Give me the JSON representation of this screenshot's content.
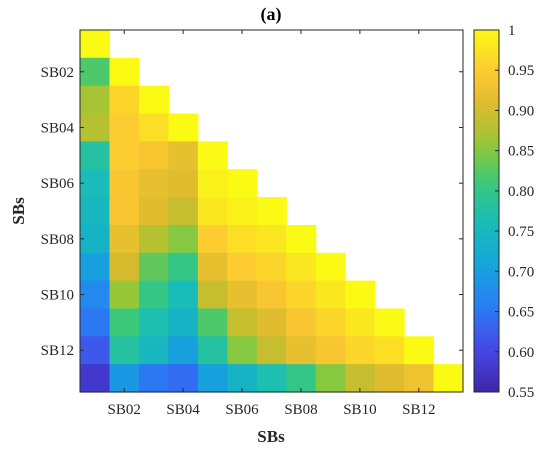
{
  "chart_data": {
    "type": "heatmap",
    "title": "(a)",
    "xlabel": "SBs",
    "ylabel": "SBs",
    "categories": [
      "SB01",
      "SB02",
      "SB03",
      "SB04",
      "SB05",
      "SB06",
      "SB07",
      "SB08",
      "SB09",
      "SB10",
      "SB11",
      "SB12",
      "SB13"
    ],
    "x_tick_labels": [
      "SB02",
      "SB04",
      "SB06",
      "SB08",
      "SB10",
      "SB12"
    ],
    "y_tick_labels": [
      "SB02",
      "SB04",
      "SB06",
      "SB08",
      "SB10",
      "SB12"
    ],
    "colorbar": {
      "range": [
        0.55,
        1
      ],
      "tick_values": [
        0.55,
        0.6,
        0.65,
        0.7,
        0.75,
        0.8,
        0.85,
        0.9,
        0.95,
        1
      ],
      "tick_labels": [
        "0.55",
        "0.60",
        "0.65",
        "0.70",
        "0.75",
        "0.80",
        "0.85",
        "0.90",
        "0.95",
        "1"
      ],
      "colormap": "parula"
    },
    "matrix": [
      [
        1.0
      ],
      [
        0.82,
        1.0
      ],
      [
        0.87,
        0.96,
        1.0
      ],
      [
        0.88,
        0.95,
        0.97,
        1.0
      ],
      [
        0.78,
        0.95,
        0.94,
        0.92,
        1.0
      ],
      [
        0.76,
        0.94,
        0.92,
        0.91,
        0.99,
        1.0
      ],
      [
        0.75,
        0.94,
        0.91,
        0.89,
        0.98,
        0.99,
        1.0
      ],
      [
        0.74,
        0.92,
        0.88,
        0.85,
        0.95,
        0.97,
        0.98,
        1.0
      ],
      [
        0.7,
        0.9,
        0.83,
        0.8,
        0.92,
        0.95,
        0.96,
        0.98,
        1.0
      ],
      [
        0.67,
        0.86,
        0.8,
        0.76,
        0.89,
        0.92,
        0.94,
        0.96,
        0.98,
        1.0
      ],
      [
        0.65,
        0.81,
        0.77,
        0.74,
        0.82,
        0.89,
        0.91,
        0.94,
        0.96,
        0.98,
        1.0
      ],
      [
        0.62,
        0.78,
        0.75,
        0.7,
        0.78,
        0.85,
        0.89,
        0.92,
        0.94,
        0.96,
        0.97,
        1.0
      ],
      [
        0.58,
        0.69,
        0.65,
        0.64,
        0.7,
        0.74,
        0.77,
        0.8,
        0.85,
        0.89,
        0.91,
        0.93,
        1.0
      ]
    ],
    "grid": false,
    "legend": "colorbar-right"
  }
}
